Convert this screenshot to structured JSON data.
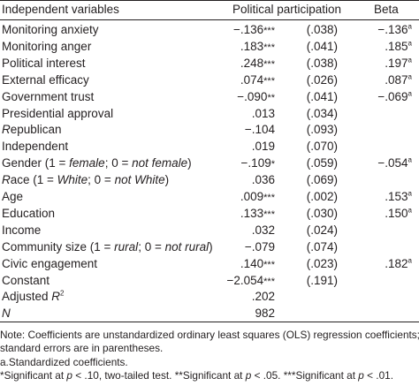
{
  "header": {
    "col_variable": "Independent variables",
    "col_participation": "Political participation",
    "col_beta": "Beta"
  },
  "rows": [
    {
      "label": "Monitoring anxiety",
      "coef": "−.136",
      "sig": "***",
      "se": "(.038)",
      "beta": "−.136",
      "beta_sup": "a"
    },
    {
      "label": "Monitoring anger",
      "coef": ".183",
      "sig": "***",
      "se": "(.041)",
      "beta": ".185",
      "beta_sup": "a"
    },
    {
      "label": "Political interest",
      "coef": ".248",
      "sig": "***",
      "se": "(.038)",
      "beta": ".197",
      "beta_sup": "a"
    },
    {
      "label": "External efficacy",
      "coef": ".074",
      "sig": "***",
      "se": "(.026)",
      "beta": ".087",
      "beta_sup": "a"
    },
    {
      "label": "Government trust",
      "coef": "−.090",
      "sig": "**",
      "se": "(.041)",
      "beta": "−.069",
      "beta_sup": "a"
    },
    {
      "label": "Presidential approval",
      "coef": ".013",
      "sig": "",
      "se": "(.034)",
      "beta": "",
      "beta_sup": ""
    },
    {
      "label": "Republican",
      "coef": "−.104",
      "sig": "",
      "se": "(.093)",
      "beta": "",
      "beta_sup": ""
    },
    {
      "label": "Independent",
      "coef": ".019",
      "sig": "",
      "se": "(.070)",
      "beta": "",
      "beta_sup": ""
    },
    {
      "label": "Gender (1 = female; 0 = not female)",
      "coef": "−.109",
      "sig": "*",
      "se": "(.059)",
      "beta": "−.054",
      "beta_sup": "a"
    },
    {
      "label": "Race (1 = White; 0 = not White)",
      "coef": ".036",
      "sig": "",
      "se": "(.069)",
      "beta": "",
      "beta_sup": ""
    },
    {
      "label": "Age",
      "coef": ".009",
      "sig": "***",
      "se": "(.002)",
      "beta": ".153",
      "beta_sup": "a"
    },
    {
      "label": "Education",
      "coef": ".133",
      "sig": "***",
      "se": "(.030)",
      "beta": ".150",
      "beta_sup": "a"
    },
    {
      "label": "Income",
      "coef": ".032",
      "sig": "",
      "se": "(.024)",
      "beta": "",
      "beta_sup": ""
    },
    {
      "label": "Community size (1 = rural; 0 = not rural)",
      "coef": "−.079",
      "sig": "",
      "se": "(.074)",
      "beta": "",
      "beta_sup": ""
    },
    {
      "label": "Civic engagement",
      "coef": ".140",
      "sig": "***",
      "se": "(.023)",
      "beta": ".182",
      "beta_sup": "a"
    },
    {
      "label": "Constant",
      "coef": "−2.054",
      "sig": "***",
      "se": "(.191)",
      "beta": "",
      "beta_sup": ""
    },
    {
      "label": "Adjusted R",
      "label_sup": "2",
      "coef": ".202",
      "sig": "",
      "se": "",
      "beta": "",
      "beta_sup": ""
    },
    {
      "label": "N",
      "coef": "982",
      "sig": "",
      "se": "",
      "beta": "",
      "beta_sup": ""
    }
  ],
  "notes": {
    "line1": "Note: Coefficients are unstandardized ordinary least squares (OLS) regression coefficients;",
    "line2": "standard errors are in parentheses.",
    "line3": "a.Standardized coefficients.",
    "line4": "*Significant at p < .10, two-tailed test. **Significant at p < .05. ***Significant at p < .01."
  }
}
